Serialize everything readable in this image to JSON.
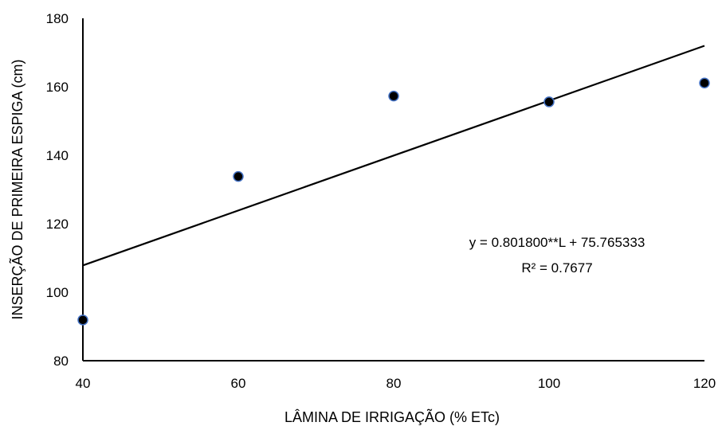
{
  "chart_data": {
    "type": "scatter",
    "title": "",
    "xlabel": "LÂMINA DE IRRIGAÇÃO (% ETc)",
    "ylabel": "INSERÇÃO DE PRIMEIRA ESPIGA (cm)",
    "xlim": [
      40,
      120
    ],
    "ylim": [
      80,
      180
    ],
    "xticks": [
      40,
      60,
      80,
      100,
      120
    ],
    "yticks": [
      80,
      100,
      120,
      140,
      160,
      180
    ],
    "xtick_labels": [
      "40",
      "60",
      "80",
      "100",
      "120"
    ],
    "ytick_labels": [
      "80",
      "100",
      "120",
      "140",
      "160",
      "180"
    ],
    "grid": false,
    "legend": "none",
    "points": [
      {
        "x": 40,
        "y": 91.9
      },
      {
        "x": 60,
        "y": 133.8
      },
      {
        "x": 80,
        "y": 157.3
      },
      {
        "x": 100,
        "y": 155.6
      },
      {
        "x": 120,
        "y": 161.1
      }
    ],
    "trendline": {
      "type": "linear",
      "slope": 0.8018,
      "intercept": 75.765333,
      "x_range": [
        40,
        120
      ]
    },
    "annotations": {
      "equation": "y = 0.801800**L + 75.765333",
      "r_squared": "R² = 0.7677"
    },
    "colors": {
      "marker_fill": "#000000",
      "marker_edge": "#4472c4",
      "line": "#000000",
      "axis": "#000000"
    }
  }
}
